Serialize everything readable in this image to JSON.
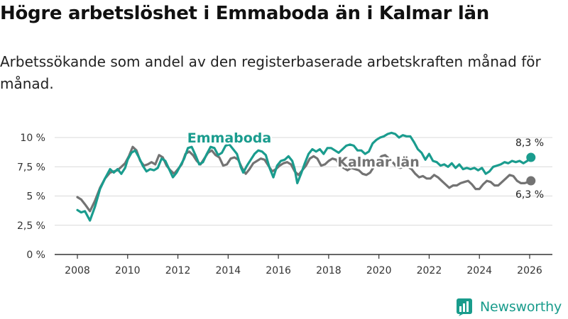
{
  "header": {
    "title": "Högre arbetslöshet i Emmaboda än i Kalmar län",
    "subtitle": "Arbetssökande som andel av den registerbaserade arbetskraften månad för månad."
  },
  "brand": {
    "name": "Newsworthy",
    "icon": "bar-chart-logo-icon",
    "color": "#199c8c"
  },
  "colors": {
    "emmaboda": "#1a9c8e",
    "kalmar": "#737373",
    "grid": "#d9d9d9",
    "axis": "#333333"
  },
  "chart_data": {
    "type": "line",
    "title": "Högre arbetslöshet i Emmaboda än i Kalmar län",
    "xlabel": "",
    "ylabel": "",
    "x_ticks": [
      "2008",
      "2010",
      "2012",
      "2014",
      "2016",
      "2018",
      "2020",
      "2022",
      "2024",
      "2026"
    ],
    "y_ticks": [
      "0 %",
      "2,5 %",
      "5 %",
      "7,5 %",
      "10 %"
    ],
    "y_tick_values": [
      0,
      2.5,
      5,
      7.5,
      10
    ],
    "xlim": [
      2007.0,
      2026.9
    ],
    "ylim": [
      0,
      10.5
    ],
    "grid": true,
    "series": [
      {
        "name": "Emmaboda",
        "label": "Emmaboda",
        "end_label": "8,3 %",
        "points": [
          [
            2008.0,
            3.8
          ],
          [
            2008.15,
            3.6
          ],
          [
            2008.3,
            3.7
          ],
          [
            2008.5,
            2.9
          ],
          [
            2008.7,
            4.1
          ],
          [
            2008.9,
            5.6
          ],
          [
            2009.1,
            6.5
          ],
          [
            2009.3,
            7.3
          ],
          [
            2009.45,
            7.0
          ],
          [
            2009.6,
            7.3
          ],
          [
            2009.75,
            6.9
          ],
          [
            2009.9,
            7.4
          ],
          [
            2010.0,
            8.1
          ],
          [
            2010.15,
            8.7
          ],
          [
            2010.3,
            8.9
          ],
          [
            2010.45,
            8.3
          ],
          [
            2010.6,
            7.6
          ],
          [
            2010.75,
            7.1
          ],
          [
            2010.9,
            7.3
          ],
          [
            2011.05,
            7.2
          ],
          [
            2011.2,
            7.4
          ],
          [
            2011.35,
            8.2
          ],
          [
            2011.5,
            8.0
          ],
          [
            2011.65,
            7.3
          ],
          [
            2011.8,
            6.6
          ],
          [
            2011.95,
            7.0
          ],
          [
            2012.1,
            7.6
          ],
          [
            2012.25,
            8.2
          ],
          [
            2012.4,
            9.1
          ],
          [
            2012.55,
            9.2
          ],
          [
            2012.7,
            8.5
          ],
          [
            2012.85,
            7.7
          ],
          [
            2013.0,
            7.9
          ],
          [
            2013.15,
            8.6
          ],
          [
            2013.3,
            9.2
          ],
          [
            2013.45,
            9.1
          ],
          [
            2013.6,
            8.5
          ],
          [
            2013.75,
            8.7
          ],
          [
            2013.9,
            9.3
          ],
          [
            2014.05,
            9.4
          ],
          [
            2014.2,
            9.0
          ],
          [
            2014.35,
            8.6
          ],
          [
            2014.5,
            7.5
          ],
          [
            2014.6,
            7.0
          ],
          [
            2014.75,
            7.6
          ],
          [
            2014.9,
            8.1
          ],
          [
            2015.05,
            8.6
          ],
          [
            2015.2,
            8.9
          ],
          [
            2015.35,
            8.8
          ],
          [
            2015.5,
            8.5
          ],
          [
            2015.65,
            7.4
          ],
          [
            2015.8,
            6.6
          ],
          [
            2015.95,
            7.6
          ],
          [
            2016.1,
            8.0
          ],
          [
            2016.25,
            8.1
          ],
          [
            2016.4,
            8.4
          ],
          [
            2016.55,
            8.0
          ],
          [
            2016.65,
            7.3
          ],
          [
            2016.75,
            6.1
          ],
          [
            2016.9,
            6.9
          ],
          [
            2017.05,
            7.8
          ],
          [
            2017.2,
            8.6
          ],
          [
            2017.35,
            9.0
          ],
          [
            2017.5,
            8.8
          ],
          [
            2017.65,
            9.0
          ],
          [
            2017.8,
            8.6
          ],
          [
            2017.95,
            9.1
          ],
          [
            2018.1,
            9.1
          ],
          [
            2018.25,
            8.9
          ],
          [
            2018.4,
            8.7
          ],
          [
            2018.55,
            9.0
          ],
          [
            2018.7,
            9.3
          ],
          [
            2018.85,
            9.4
          ],
          [
            2019.0,
            9.3
          ],
          [
            2019.15,
            8.9
          ],
          [
            2019.3,
            8.9
          ],
          [
            2019.45,
            8.6
          ],
          [
            2019.6,
            8.8
          ],
          [
            2019.75,
            9.5
          ],
          [
            2019.9,
            9.8
          ],
          [
            2020.05,
            10.0
          ],
          [
            2020.2,
            10.1
          ],
          [
            2020.35,
            10.3
          ],
          [
            2020.5,
            10.4
          ],
          [
            2020.65,
            10.3
          ],
          [
            2020.8,
            10.0
          ],
          [
            2020.95,
            10.2
          ],
          [
            2021.1,
            10.1
          ],
          [
            2021.25,
            10.1
          ],
          [
            2021.4,
            9.6
          ],
          [
            2021.55,
            9.0
          ],
          [
            2021.7,
            8.7
          ],
          [
            2021.85,
            8.1
          ],
          [
            2022.0,
            8.6
          ],
          [
            2022.15,
            8.0
          ],
          [
            2022.3,
            7.9
          ],
          [
            2022.45,
            7.6
          ],
          [
            2022.6,
            7.7
          ],
          [
            2022.75,
            7.5
          ],
          [
            2022.9,
            7.8
          ],
          [
            2023.05,
            7.4
          ],
          [
            2023.2,
            7.7
          ],
          [
            2023.35,
            7.3
          ],
          [
            2023.5,
            7.4
          ],
          [
            2023.65,
            7.3
          ],
          [
            2023.8,
            7.4
          ],
          [
            2023.95,
            7.2
          ],
          [
            2024.1,
            7.4
          ],
          [
            2024.25,
            6.9
          ],
          [
            2024.4,
            7.1
          ],
          [
            2024.55,
            7.5
          ],
          [
            2024.7,
            7.6
          ],
          [
            2024.85,
            7.7
          ],
          [
            2025.0,
            7.9
          ],
          [
            2025.15,
            7.8
          ],
          [
            2025.3,
            8.0
          ],
          [
            2025.45,
            7.9
          ],
          [
            2025.6,
            8.0
          ],
          [
            2025.75,
            7.8
          ],
          [
            2025.9,
            8.0
          ],
          [
            2026.05,
            8.3
          ]
        ]
      },
      {
        "name": "Kalmar län",
        "label": "Kalmar län",
        "end_label": "6,3 %",
        "points": [
          [
            2008.0,
            4.9
          ],
          [
            2008.15,
            4.7
          ],
          [
            2008.3,
            4.3
          ],
          [
            2008.5,
            3.7
          ],
          [
            2008.7,
            4.6
          ],
          [
            2008.9,
            5.7
          ],
          [
            2009.1,
            6.5
          ],
          [
            2009.3,
            7.0
          ],
          [
            2009.45,
            7.1
          ],
          [
            2009.6,
            7.2
          ],
          [
            2009.75,
            7.5
          ],
          [
            2009.9,
            7.8
          ],
          [
            2010.05,
            8.4
          ],
          [
            2010.2,
            9.2
          ],
          [
            2010.35,
            8.9
          ],
          [
            2010.5,
            8.0
          ],
          [
            2010.65,
            7.6
          ],
          [
            2010.8,
            7.7
          ],
          [
            2010.95,
            7.9
          ],
          [
            2011.1,
            7.7
          ],
          [
            2011.25,
            8.5
          ],
          [
            2011.4,
            8.3
          ],
          [
            2011.55,
            7.6
          ],
          [
            2011.7,
            7.2
          ],
          [
            2011.85,
            6.9
          ],
          [
            2012.0,
            7.3
          ],
          [
            2012.15,
            7.7
          ],
          [
            2012.3,
            8.6
          ],
          [
            2012.45,
            8.8
          ],
          [
            2012.6,
            8.5
          ],
          [
            2012.75,
            8.0
          ],
          [
            2012.9,
            7.7
          ],
          [
            2013.05,
            8.2
          ],
          [
            2013.2,
            8.7
          ],
          [
            2013.35,
            8.9
          ],
          [
            2013.5,
            8.5
          ],
          [
            2013.65,
            8.3
          ],
          [
            2013.8,
            7.6
          ],
          [
            2013.95,
            7.7
          ],
          [
            2014.1,
            8.2
          ],
          [
            2014.25,
            8.3
          ],
          [
            2014.4,
            8.1
          ],
          [
            2014.55,
            7.4
          ],
          [
            2014.7,
            6.9
          ],
          [
            2014.85,
            7.3
          ],
          [
            2015.0,
            7.8
          ],
          [
            2015.15,
            8.0
          ],
          [
            2015.3,
            8.2
          ],
          [
            2015.45,
            8.1
          ],
          [
            2015.6,
            7.6
          ],
          [
            2015.75,
            7.1
          ],
          [
            2015.9,
            7.3
          ],
          [
            2016.05,
            7.6
          ],
          [
            2016.2,
            7.8
          ],
          [
            2016.35,
            7.9
          ],
          [
            2016.5,
            7.7
          ],
          [
            2016.65,
            7.1
          ],
          [
            2016.8,
            6.8
          ],
          [
            2016.95,
            7.2
          ],
          [
            2017.1,
            7.6
          ],
          [
            2017.25,
            8.2
          ],
          [
            2017.4,
            8.4
          ],
          [
            2017.55,
            8.2
          ],
          [
            2017.7,
            7.6
          ],
          [
            2017.85,
            7.7
          ],
          [
            2018.0,
            8.0
          ],
          [
            2018.15,
            8.2
          ],
          [
            2018.3,
            8.1
          ],
          [
            2018.45,
            7.6
          ],
          [
            2018.6,
            7.4
          ],
          [
            2018.75,
            7.2
          ],
          [
            2018.9,
            7.4
          ],
          [
            2019.05,
            7.3
          ],
          [
            2019.2,
            7.2
          ],
          [
            2019.35,
            6.9
          ],
          [
            2019.5,
            6.8
          ],
          [
            2019.65,
            7.0
          ],
          [
            2019.8,
            7.5
          ],
          [
            2019.95,
            8.0
          ],
          [
            2020.1,
            8.4
          ],
          [
            2020.25,
            8.5
          ],
          [
            2020.4,
            8.2
          ],
          [
            2020.55,
            7.9
          ],
          [
            2020.7,
            7.5
          ],
          [
            2020.85,
            7.4
          ],
          [
            2021.0,
            7.5
          ],
          [
            2021.15,
            7.5
          ],
          [
            2021.3,
            7.3
          ],
          [
            2021.45,
            6.9
          ],
          [
            2021.6,
            6.6
          ],
          [
            2021.75,
            6.7
          ],
          [
            2021.9,
            6.5
          ],
          [
            2022.05,
            6.5
          ],
          [
            2022.2,
            6.8
          ],
          [
            2022.35,
            6.6
          ],
          [
            2022.5,
            6.3
          ],
          [
            2022.65,
            6.0
          ],
          [
            2022.8,
            5.7
          ],
          [
            2022.95,
            5.9
          ],
          [
            2023.1,
            5.9
          ],
          [
            2023.25,
            6.1
          ],
          [
            2023.4,
            6.2
          ],
          [
            2023.55,
            6.3
          ],
          [
            2023.7,
            6.0
          ],
          [
            2023.85,
            5.6
          ],
          [
            2024.0,
            5.6
          ],
          [
            2024.15,
            6.0
          ],
          [
            2024.3,
            6.3
          ],
          [
            2024.45,
            6.2
          ],
          [
            2024.6,
            5.9
          ],
          [
            2024.75,
            5.9
          ],
          [
            2024.9,
            6.2
          ],
          [
            2025.05,
            6.5
          ],
          [
            2025.2,
            6.8
          ],
          [
            2025.35,
            6.7
          ],
          [
            2025.5,
            6.3
          ],
          [
            2025.65,
            6.1
          ],
          [
            2025.8,
            6.1
          ],
          [
            2025.95,
            6.2
          ],
          [
            2026.05,
            6.3
          ]
        ]
      }
    ]
  }
}
